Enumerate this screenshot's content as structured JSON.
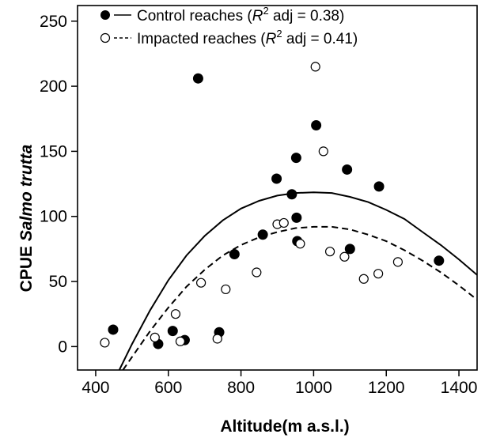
{
  "chart_data": {
    "type": "scatter",
    "xlabel": "Altitude(m a.s.l.)",
    "ylabel_regular": "CPUE ",
    "ylabel_italic": "Salmo trutta",
    "xlim": [
      350,
      1450
    ],
    "ylim": [
      -18,
      262
    ],
    "x_ticks": [
      400,
      600,
      800,
      1000,
      1200,
      1400
    ],
    "y_ticks": [
      0,
      50,
      100,
      150,
      200,
      250
    ],
    "grid": false,
    "legend_position": "top-left",
    "series": [
      {
        "name": "Control reaches",
        "legend_r2": "0.38",
        "marker": "filled-circle",
        "line": "solid",
        "points": [
          [
            448,
            13
          ],
          [
            572,
            2
          ],
          [
            612,
            12
          ],
          [
            645,
            5
          ],
          [
            682,
            206
          ],
          [
            740,
            11
          ],
          [
            782,
            71
          ],
          [
            860,
            86
          ],
          [
            898,
            129
          ],
          [
            940,
            117
          ],
          [
            952,
            145
          ],
          [
            953,
            99
          ],
          [
            955,
            81
          ],
          [
            1007,
            170
          ],
          [
            1092,
            136
          ],
          [
            1100,
            75
          ],
          [
            1180,
            123
          ],
          [
            1345,
            66
          ]
        ],
        "fit_curve": [
          [
            465,
            -18
          ],
          [
            500,
            2
          ],
          [
            550,
            28
          ],
          [
            600,
            51
          ],
          [
            650,
            70
          ],
          [
            700,
            85
          ],
          [
            750,
            97
          ],
          [
            800,
            106
          ],
          [
            850,
            112
          ],
          [
            900,
            116
          ],
          [
            950,
            118
          ],
          [
            1000,
            118.5
          ],
          [
            1050,
            118
          ],
          [
            1100,
            115
          ],
          [
            1150,
            111
          ],
          [
            1200,
            105
          ],
          [
            1250,
            98
          ],
          [
            1300,
            88
          ],
          [
            1350,
            78
          ],
          [
            1400,
            67
          ],
          [
            1450,
            55
          ]
        ]
      },
      {
        "name": "Impacted reaches",
        "legend_r2": "0.41",
        "marker": "open-circle",
        "line": "dashed",
        "points": [
          [
            425,
            3
          ],
          [
            563,
            7
          ],
          [
            620,
            25
          ],
          [
            633,
            4
          ],
          [
            690,
            49
          ],
          [
            735,
            6
          ],
          [
            758,
            44
          ],
          [
            843,
            57
          ],
          [
            900,
            94
          ],
          [
            918,
            95
          ],
          [
            963,
            79
          ],
          [
            1005,
            215
          ],
          [
            1027,
            150
          ],
          [
            1045,
            73
          ],
          [
            1085,
            69
          ],
          [
            1138,
            52
          ],
          [
            1178,
            56
          ],
          [
            1232,
            65
          ]
        ],
        "fit_curve": [
          [
            475,
            -18
          ],
          [
            500,
            -8
          ],
          [
            550,
            12
          ],
          [
            600,
            30
          ],
          [
            650,
            46
          ],
          [
            700,
            59
          ],
          [
            750,
            70
          ],
          [
            800,
            78
          ],
          [
            850,
            84
          ],
          [
            900,
            88
          ],
          [
            950,
            91
          ],
          [
            1000,
            92
          ],
          [
            1050,
            92
          ],
          [
            1100,
            90
          ],
          [
            1150,
            86
          ],
          [
            1200,
            81
          ],
          [
            1250,
            74
          ],
          [
            1300,
            66
          ],
          [
            1350,
            57
          ],
          [
            1400,
            47
          ],
          [
            1450,
            36
          ]
        ]
      }
    ]
  }
}
